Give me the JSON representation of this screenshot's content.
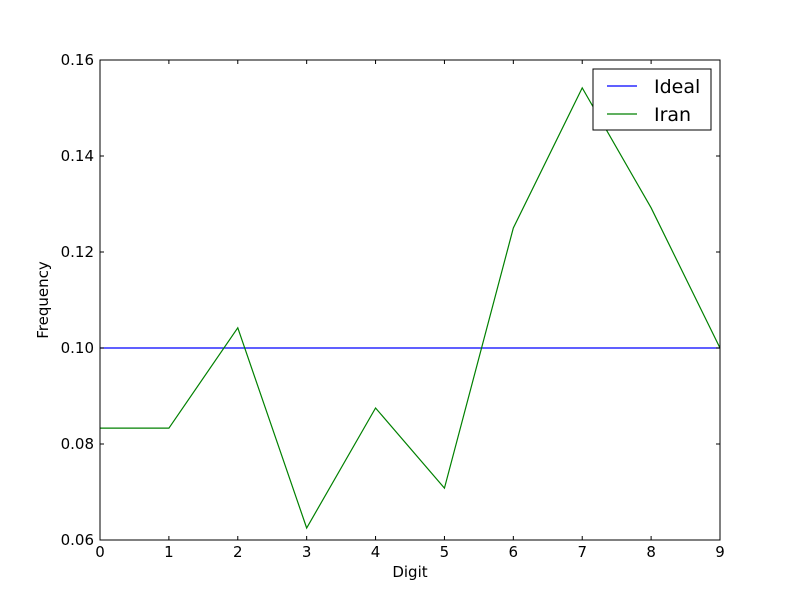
{
  "chart_data": {
    "type": "line",
    "title": "",
    "xlabel": "Digit",
    "ylabel": "Frequency",
    "xlim": [
      0,
      9
    ],
    "ylim": [
      0.06,
      0.16
    ],
    "x": [
      0,
      1,
      2,
      3,
      4,
      5,
      6,
      7,
      8,
      9
    ],
    "xticks": [
      "0",
      "1",
      "2",
      "3",
      "4",
      "5",
      "6",
      "7",
      "8",
      "9"
    ],
    "yticks": [
      "0.06",
      "0.08",
      "0.10",
      "0.12",
      "0.14",
      "0.16"
    ],
    "grid": false,
    "legend": "top-right",
    "series": [
      {
        "name": "Ideal",
        "color": "#0000ff",
        "values": [
          0.1,
          0.1,
          0.1,
          0.1,
          0.1,
          0.1,
          0.1,
          0.1,
          0.1,
          0.1
        ]
      },
      {
        "name": "Iran",
        "color": "#008000",
        "values": [
          0.0833,
          0.0833,
          0.1042,
          0.0625,
          0.0875,
          0.0708,
          0.125,
          0.1542,
          0.1292,
          0.1
        ]
      }
    ]
  }
}
